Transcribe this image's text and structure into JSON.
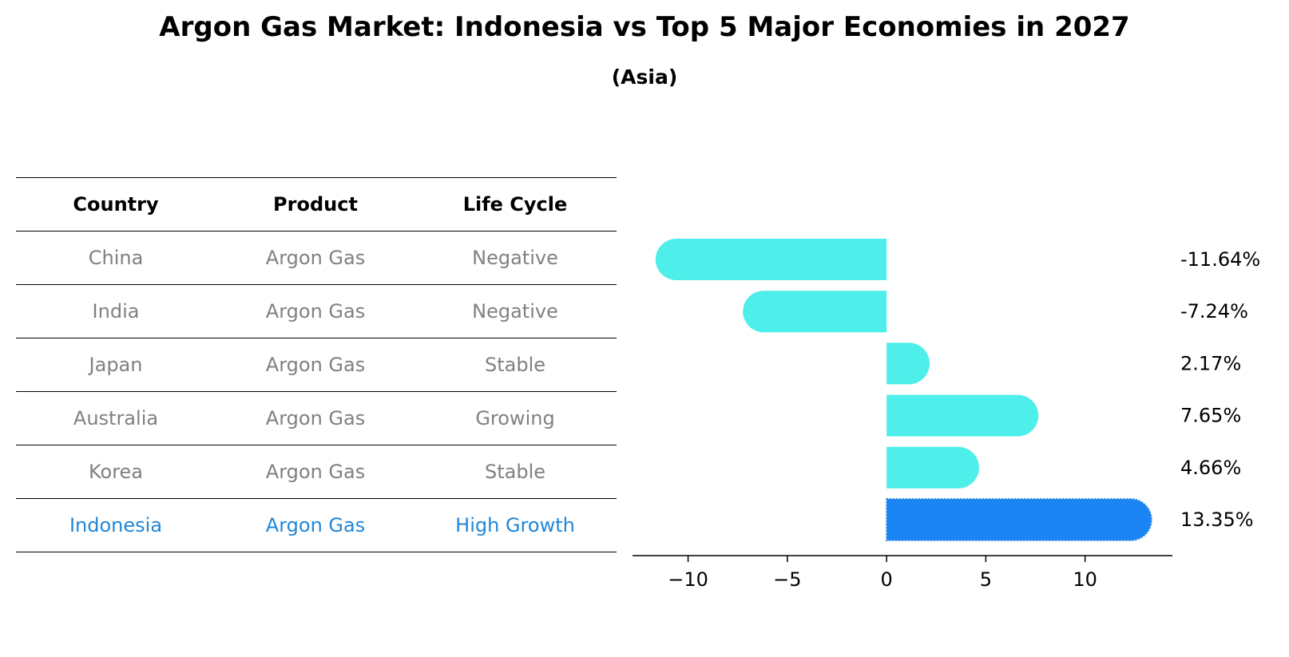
{
  "title": "Argon Gas Market: Indonesia vs Top 5 Major Economies in 2027",
  "subtitle": "(Asia)",
  "table": {
    "headers": [
      "Country",
      "Product",
      "Life Cycle"
    ],
    "rows": [
      [
        "China",
        "Argon Gas",
        "Negative"
      ],
      [
        "India",
        "Argon Gas",
        "Negative"
      ],
      [
        "Japan",
        "Argon Gas",
        "Stable"
      ],
      [
        "Australia",
        "Argon Gas",
        "Growing"
      ],
      [
        "Korea",
        "Argon Gas",
        "Stable"
      ],
      [
        "Indonesia",
        "Argon Gas",
        "High Growth"
      ]
    ],
    "highlight_row": 5
  },
  "colors": {
    "bar": "#4eeeea",
    "highlight_bar": "#1a84f5",
    "highlight_text": "#1f86d8",
    "muted_text": "#808080"
  },
  "chart_data": {
    "type": "bar",
    "orientation": "horizontal",
    "categories": [
      "China",
      "India",
      "Japan",
      "Australia",
      "Korea",
      "Indonesia"
    ],
    "values": [
      -11.64,
      -7.24,
      2.17,
      7.65,
      4.66,
      13.35
    ],
    "value_labels": [
      "-11.64%",
      "-7.24%",
      "2.17%",
      "7.65%",
      "4.66%",
      "13.35%"
    ],
    "highlight_index": 5,
    "xlim": [
      -12.8,
      14.4
    ],
    "xticks": [
      -10,
      -5,
      0,
      5,
      10
    ],
    "xtick_labels": [
      "−10",
      "−5",
      "0",
      "5",
      "10"
    ],
    "title": "",
    "xlabel": "",
    "ylabel": "",
    "grid": false
  }
}
